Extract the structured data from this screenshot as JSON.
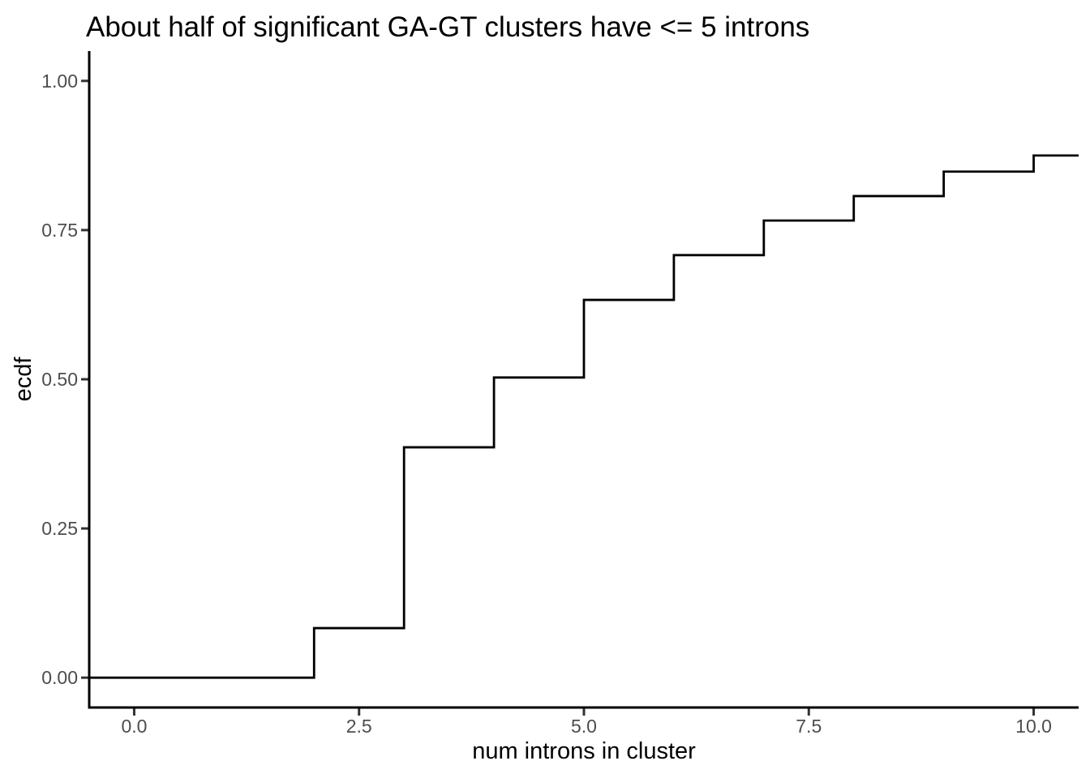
{
  "title": "About half of significant GA-GT clusters have <= 5 introns",
  "chart_data": {
    "type": "line",
    "subtype": "ecdf-step",
    "title": "About half of significant GA-GT clusters have <= 5 introns",
    "xlabel": "num introns in cluster",
    "ylabel": "ecdf",
    "grid": "off",
    "legend": "none",
    "background": "#ffffff",
    "line_color": "#000000",
    "axis_line_color": "#000000",
    "tick_mark_color": "#333333",
    "tick_label_color": "#4D4D4D",
    "xlim": [
      -0.5,
      10.5
    ],
    "ylim": [
      -0.05,
      1.05
    ],
    "x_ticks": [
      {
        "value": 0.0,
        "label": "0.0"
      },
      {
        "value": 2.5,
        "label": "2.5"
      },
      {
        "value": 5.0,
        "label": "5.0"
      },
      {
        "value": 7.5,
        "label": "7.5"
      },
      {
        "value": 10.0,
        "label": "10.0"
      }
    ],
    "y_ticks": [
      {
        "value": 0.0,
        "label": "0.00"
      },
      {
        "value": 0.25,
        "label": "0.25"
      },
      {
        "value": 0.5,
        "label": "0.50"
      },
      {
        "value": 0.75,
        "label": "0.75"
      },
      {
        "value": 1.0,
        "label": "1.00"
      }
    ],
    "baseline_start_x": -0.5,
    "baseline_value": 0.0,
    "end_x": 10.5,
    "ecdf_points": [
      {
        "num_introns": 2,
        "ecdf": 0.083
      },
      {
        "num_introns": 3,
        "ecdf": 0.386
      },
      {
        "num_introns": 4,
        "ecdf": 0.503
      },
      {
        "num_introns": 5,
        "ecdf": 0.633
      },
      {
        "num_introns": 6,
        "ecdf": 0.708
      },
      {
        "num_introns": 7,
        "ecdf": 0.766
      },
      {
        "num_introns": 8,
        "ecdf": 0.807
      },
      {
        "num_introns": 9,
        "ecdf": 0.848
      },
      {
        "num_introns": 10,
        "ecdf": 0.875
      }
    ]
  }
}
